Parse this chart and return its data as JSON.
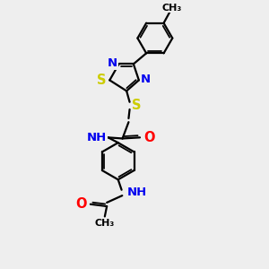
{
  "bg_color": "#eeeeee",
  "atom_colors": {
    "C": "#000000",
    "N": "#0000ee",
    "S": "#cccc00",
    "O": "#ff0000",
    "H": "#777777"
  },
  "bond_color": "#000000",
  "bond_width": 1.6,
  "font_size": 9.5,
  "xlim": [
    0,
    10
  ],
  "ylim": [
    0,
    13
  ]
}
